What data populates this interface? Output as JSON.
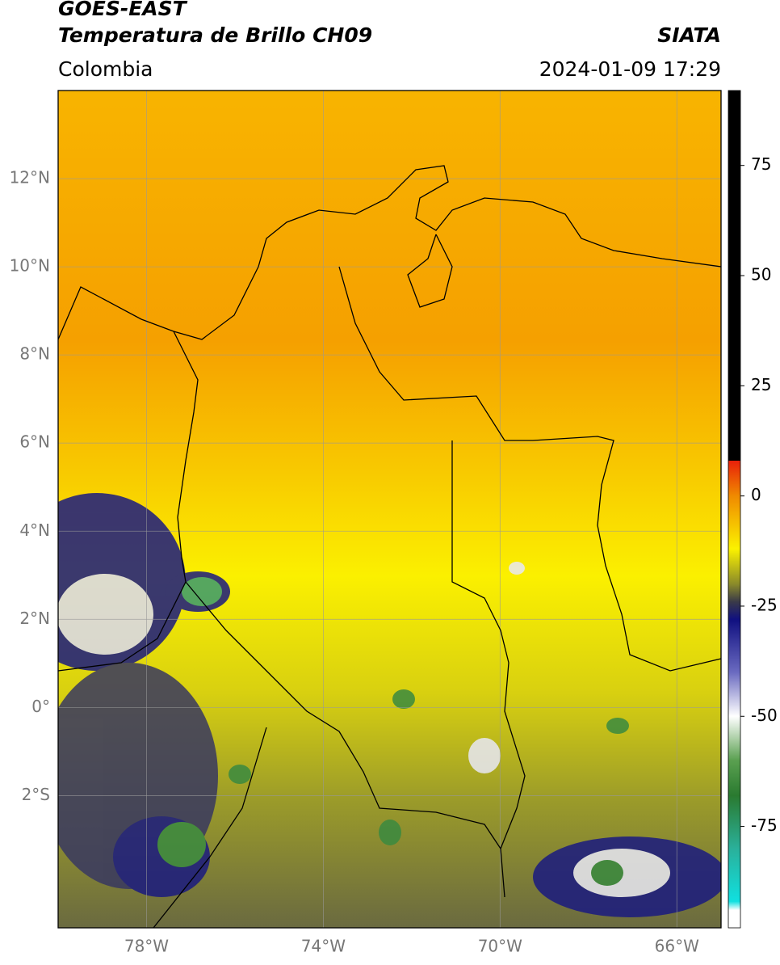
{
  "header": {
    "title": "GOES-EAST",
    "subtitle": "Temperatura de Brillo CH09",
    "source": "SIATA",
    "region": "Colombia",
    "timestamp": "2024-01-09 17:29"
  },
  "map": {
    "lonlim": [
      -80,
      -65
    ],
    "latlim": [
      -5,
      14
    ],
    "lonticks": [
      {
        "value": -78,
        "label": "78°W"
      },
      {
        "value": -74,
        "label": "74°W"
      },
      {
        "value": -70,
        "label": "70°W"
      },
      {
        "value": -66,
        "label": "66°W"
      }
    ],
    "latticks": [
      {
        "value": 12,
        "label": "12°N"
      },
      {
        "value": 10,
        "label": "10°N"
      },
      {
        "value": 8,
        "label": "8°N"
      },
      {
        "value": 6,
        "label": "6°N"
      },
      {
        "value": 4,
        "label": "4°N"
      },
      {
        "value": 2,
        "label": "2°N"
      },
      {
        "value": 0,
        "label": "0°"
      },
      {
        "value": -2,
        "label": "2°S"
      }
    ],
    "grid": true
  },
  "colorbar": {
    "lim": [
      -98,
      92
    ],
    "ticks": [
      75,
      50,
      25,
      0,
      -25,
      -50,
      -75
    ],
    "colormap": [
      [
        92,
        "#000000"
      ],
      [
        8,
        "#000000"
      ],
      [
        8,
        "#e8200a"
      ],
      [
        0,
        "#f08a00"
      ],
      [
        -12,
        "#fbf200"
      ],
      [
        -20,
        "#8a8a2a"
      ],
      [
        -24,
        "#3a3a48"
      ],
      [
        -28,
        "#101080"
      ],
      [
        -40,
        "#6a6ac0"
      ],
      [
        -50,
        "#ffffff"
      ],
      [
        -60,
        "#5aa050"
      ],
      [
        -68,
        "#2a7a30"
      ],
      [
        -80,
        "#2ab09a"
      ],
      [
        -92,
        "#10e0e0"
      ],
      [
        -94,
        "#ffffff"
      ],
      [
        -98,
        "#ffffff"
      ]
    ]
  }
}
